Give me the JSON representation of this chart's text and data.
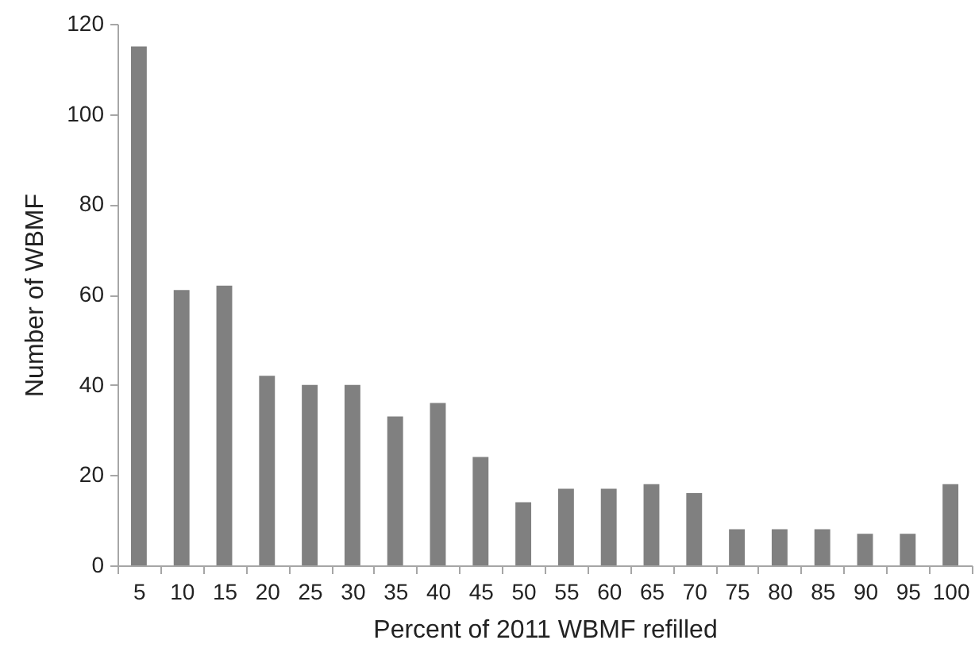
{
  "chart_data": {
    "type": "bar",
    "xlabel": "Percent of 2011 WBMF refilled",
    "ylabel": "Number of WBMF",
    "categories": [
      "5",
      "10",
      "15",
      "20",
      "25",
      "30",
      "35",
      "40",
      "45",
      "50",
      "55",
      "60",
      "65",
      "70",
      "75",
      "80",
      "85",
      "90",
      "95",
      "100"
    ],
    "values": [
      115,
      61,
      62,
      42,
      40,
      40,
      33,
      36,
      24,
      14,
      17,
      17,
      18,
      16,
      8,
      8,
      8,
      7,
      7,
      18
    ],
    "color": "#808080",
    "ylim": [
      0,
      120
    ],
    "yticks": [
      0,
      20,
      40,
      60,
      80,
      100,
      120
    ],
    "grid": false
  }
}
